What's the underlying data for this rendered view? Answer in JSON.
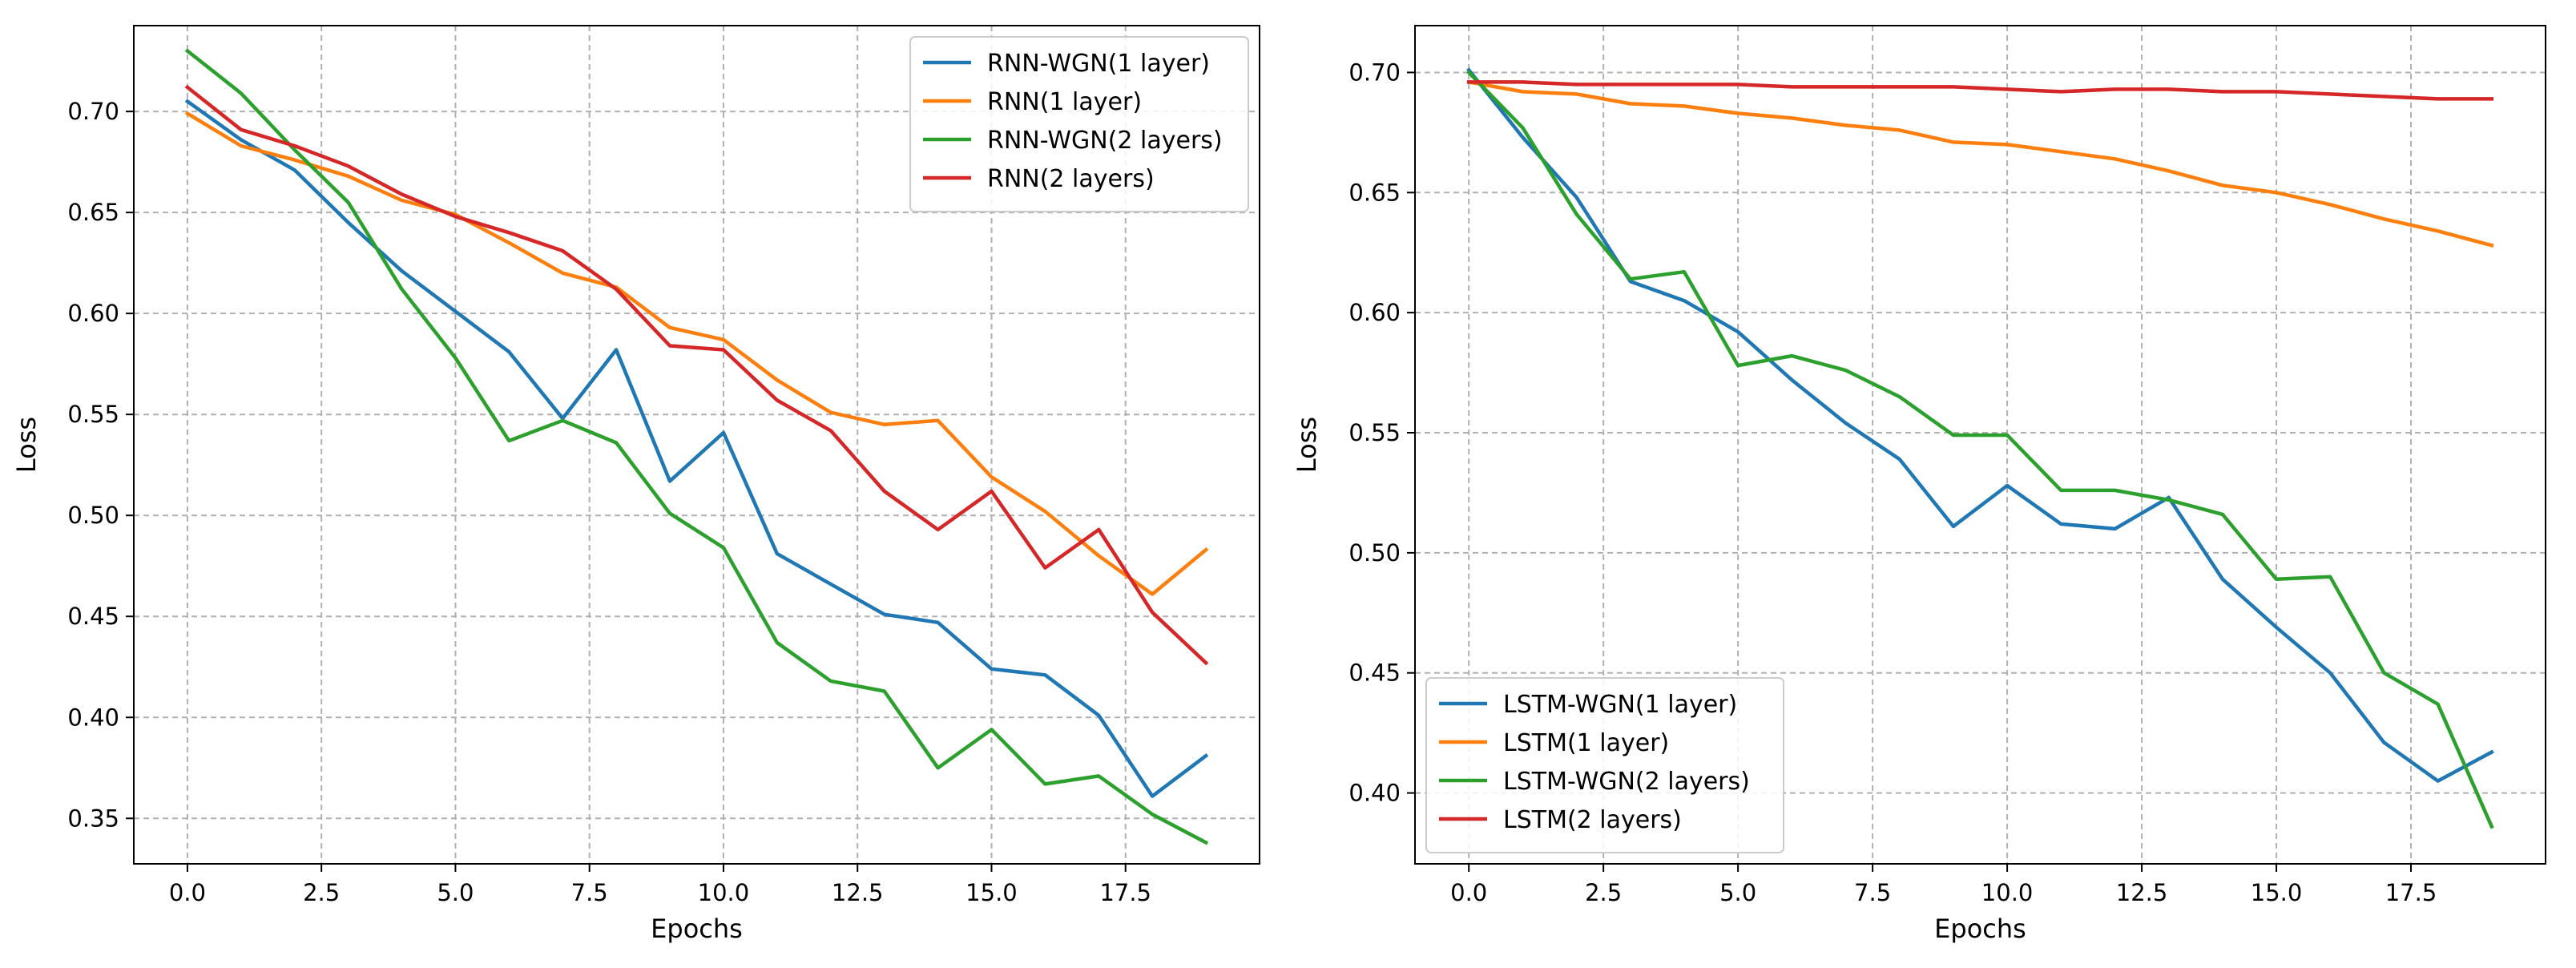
{
  "chart_data": [
    {
      "type": "line",
      "xlabel": "Epochs",
      "ylabel": "Loss",
      "xlim": [
        -1.0,
        20.0
      ],
      "ylim": [
        0.3275,
        0.7425
      ],
      "xticks": [
        0.0,
        2.5,
        5.0,
        7.5,
        10.0,
        12.5,
        15.0,
        17.5
      ],
      "xtick_labels": [
        "0.0",
        "2.5",
        "5.0",
        "7.5",
        "10.0",
        "12.5",
        "15.0",
        "17.5"
      ],
      "yticks": [
        0.35,
        0.4,
        0.45,
        0.5,
        0.55,
        0.6,
        0.65,
        0.7
      ],
      "ytick_labels": [
        "0.35",
        "0.40",
        "0.45",
        "0.50",
        "0.55",
        "0.60",
        "0.65",
        "0.70"
      ],
      "grid": true,
      "legend_position": "top-right",
      "x": [
        0,
        1,
        2,
        3,
        4,
        5,
        6,
        7,
        8,
        9,
        10,
        11,
        12,
        13,
        14,
        15,
        16,
        17,
        18,
        19
      ],
      "series": [
        {
          "name": "RNN-WGN(1 layer)",
          "color": "#1f77b4",
          "values": [
            0.705,
            0.686,
            0.671,
            0.645,
            0.621,
            0.601,
            0.581,
            0.548,
            0.582,
            0.517,
            0.541,
            0.481,
            0.466,
            0.451,
            0.447,
            0.424,
            0.421,
            0.401,
            0.361,
            0.381
          ]
        },
        {
          "name": "RNN(1 layer)",
          "color": "#ff7f0e",
          "values": [
            0.699,
            0.683,
            0.676,
            0.668,
            0.656,
            0.649,
            0.635,
            0.62,
            0.613,
            0.593,
            0.587,
            0.567,
            0.551,
            0.545,
            0.547,
            0.519,
            0.502,
            0.48,
            0.461,
            0.483
          ]
        },
        {
          "name": "RNN-WGN(2 layers)",
          "color": "#2ca02c",
          "values": [
            0.73,
            0.709,
            0.681,
            0.655,
            0.612,
            0.578,
            0.537,
            0.547,
            0.536,
            0.501,
            0.484,
            0.437,
            0.418,
            0.413,
            0.375,
            0.394,
            0.367,
            0.371,
            0.352,
            0.338
          ]
        },
        {
          "name": "RNN(2 layers)",
          "color": "#d62728",
          "values": [
            0.712,
            0.691,
            0.683,
            0.673,
            0.659,
            0.648,
            0.64,
            0.631,
            0.612,
            0.584,
            0.582,
            0.557,
            0.542,
            0.512,
            0.493,
            0.512,
            0.474,
            0.493,
            0.452,
            0.427
          ]
        }
      ]
    },
    {
      "type": "line",
      "xlabel": "Epochs",
      "ylabel": "Loss",
      "xlim": [
        -1.0,
        20.0
      ],
      "ylim": [
        0.3705,
        0.7195
      ],
      "xticks": [
        0.0,
        2.5,
        5.0,
        7.5,
        10.0,
        12.5,
        15.0,
        17.5
      ],
      "xtick_labels": [
        "0.0",
        "2.5",
        "5.0",
        "7.5",
        "10.0",
        "12.5",
        "15.0",
        "17.5"
      ],
      "yticks": [
        0.4,
        0.45,
        0.5,
        0.55,
        0.6,
        0.65,
        0.7
      ],
      "ytick_labels": [
        "0.40",
        "0.45",
        "0.50",
        "0.55",
        "0.60",
        "0.65",
        "0.70"
      ],
      "grid": true,
      "legend_position": "bottom-left",
      "x": [
        0,
        1,
        2,
        3,
        4,
        5,
        6,
        7,
        8,
        9,
        10,
        11,
        12,
        13,
        14,
        15,
        16,
        17,
        18,
        19
      ],
      "series": [
        {
          "name": "LSTM-WGN(1 layer)",
          "color": "#1f77b4",
          "values": [
            0.701,
            0.673,
            0.648,
            0.613,
            0.605,
            0.592,
            0.572,
            0.554,
            0.539,
            0.511,
            0.528,
            0.512,
            0.51,
            0.523,
            0.489,
            0.469,
            0.45,
            0.421,
            0.405,
            0.417
          ]
        },
        {
          "name": "LSTM(1 layer)",
          "color": "#ff7f0e",
          "values": [
            0.696,
            0.692,
            0.691,
            0.687,
            0.686,
            0.683,
            0.681,
            0.678,
            0.676,
            0.671,
            0.67,
            0.667,
            0.664,
            0.659,
            0.653,
            0.65,
            0.645,
            0.639,
            0.634,
            0.628
          ]
        },
        {
          "name": "LSTM-WGN(2 layers)",
          "color": "#2ca02c",
          "values": [
            0.7,
            0.677,
            0.641,
            0.614,
            0.617,
            0.578,
            0.582,
            0.576,
            0.565,
            0.549,
            0.549,
            0.526,
            0.526,
            0.522,
            0.516,
            0.489,
            0.49,
            0.45,
            0.437,
            0.386
          ]
        },
        {
          "name": "LSTM(2 layers)",
          "color": "#d62728",
          "values": [
            0.696,
            0.696,
            0.695,
            0.695,
            0.695,
            0.695,
            0.694,
            0.694,
            0.694,
            0.694,
            0.693,
            0.692,
            0.693,
            0.693,
            0.692,
            0.692,
            0.691,
            0.69,
            0.689,
            0.689
          ]
        }
      ]
    }
  ]
}
